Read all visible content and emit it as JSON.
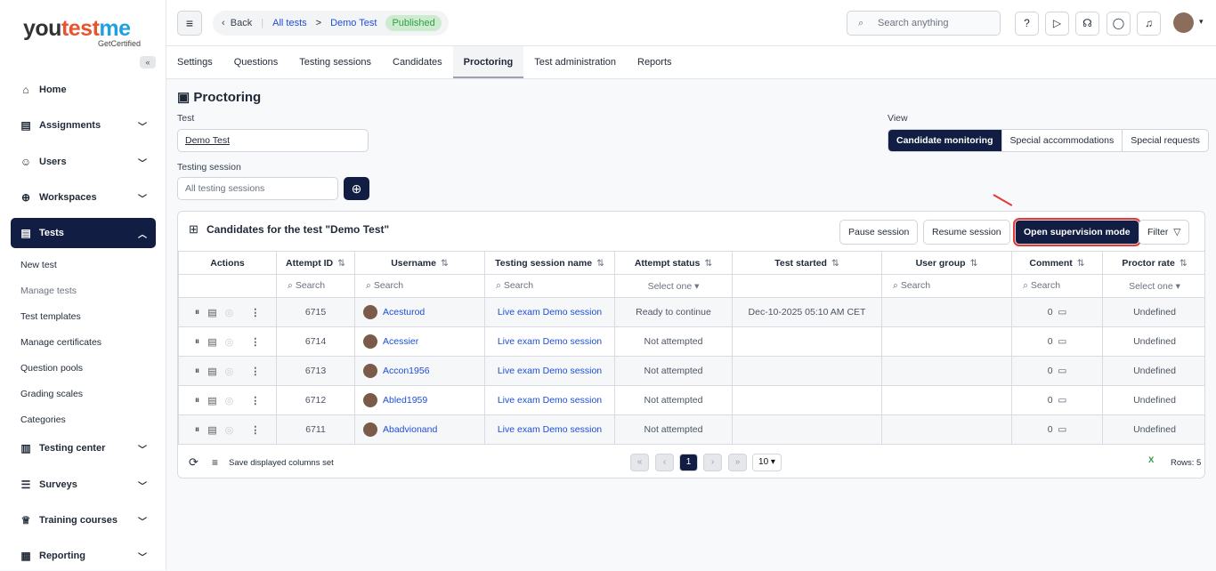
{
  "brand": {
    "name_a": "you",
    "name_b": "test",
    "name_c": "me",
    "tagline": "GetCertified"
  },
  "sidebar": {
    "items": [
      {
        "label": "Home",
        "icon": "home-icon"
      },
      {
        "label": "Assignments",
        "icon": "clipboard-icon"
      },
      {
        "label": "Users",
        "icon": "users-icon"
      },
      {
        "label": "Workspaces",
        "icon": "globe-icon"
      },
      {
        "label": "Tests",
        "icon": "document-icon"
      },
      {
        "label": "Testing center",
        "icon": "building-icon"
      },
      {
        "label": "Surveys",
        "icon": "list-icon"
      },
      {
        "label": "Training courses",
        "icon": "trophy-icon"
      },
      {
        "label": "Reporting",
        "icon": "chart-icon"
      }
    ],
    "sub_items": [
      "New test",
      "Manage tests",
      "Test templates",
      "Manage certificates",
      "Question pools",
      "Grading scales",
      "Categories"
    ]
  },
  "header": {
    "back": "Back",
    "crumb1": "All tests",
    "crumb2": "Demo Test",
    "status": "Published",
    "search_placeholder": "Search anything"
  },
  "tabs": [
    "Settings",
    "Questions",
    "Testing sessions",
    "Candidates",
    "Proctoring",
    "Test administration",
    "Reports"
  ],
  "page": {
    "title": "Proctoring",
    "test_label": "Test",
    "test_value": "Demo Test",
    "session_label": "Testing session",
    "session_placeholder": "All testing sessions",
    "view_label": "View",
    "views": [
      "Candidate monitoring",
      "Special accommodations",
      "Special requests"
    ]
  },
  "card": {
    "title": "Candidates for the test \"Demo Test\"",
    "pause": "Pause session",
    "resume": "Resume session",
    "supervise": "Open supervision mode",
    "filter": "Filter"
  },
  "table": {
    "columns": [
      "Actions",
      "Attempt ID",
      "Username",
      "Testing session name",
      "Attempt status",
      "Test started",
      "User group",
      "Comment",
      "Proctor rate"
    ],
    "search": "Search",
    "select": "Select one",
    "rows": [
      {
        "id": "6715",
        "user": "Acesturod",
        "session": "Live exam Demo session",
        "status": "Ready to continue",
        "started": "Dec-10-2025 05:10 AM CET",
        "group": "",
        "comment": "0",
        "rate": "Undefined"
      },
      {
        "id": "6714",
        "user": "Acessier",
        "session": "Live exam Demo session",
        "status": "Not attempted",
        "started": "",
        "group": "",
        "comment": "0",
        "rate": "Undefined"
      },
      {
        "id": "6713",
        "user": "Accon1956",
        "session": "Live exam Demo session",
        "status": "Not attempted",
        "started": "",
        "group": "",
        "comment": "0",
        "rate": "Undefined"
      },
      {
        "id": "6712",
        "user": "Abled1959",
        "session": "Live exam Demo session",
        "status": "Not attempted",
        "started": "",
        "group": "",
        "comment": "0",
        "rate": "Undefined"
      },
      {
        "id": "6711",
        "user": "Abadvionand",
        "session": "Live exam Demo session",
        "status": "Not attempted",
        "started": "",
        "group": "",
        "comment": "0",
        "rate": "Undefined"
      }
    ]
  },
  "footer": {
    "save_cols": "Save displayed columns set",
    "page": "1",
    "page_size": "10",
    "rows": "Rows: 5"
  },
  "colors": {
    "accent": "#111d42",
    "link": "#1d4ed8",
    "highlight": "#e53935"
  }
}
